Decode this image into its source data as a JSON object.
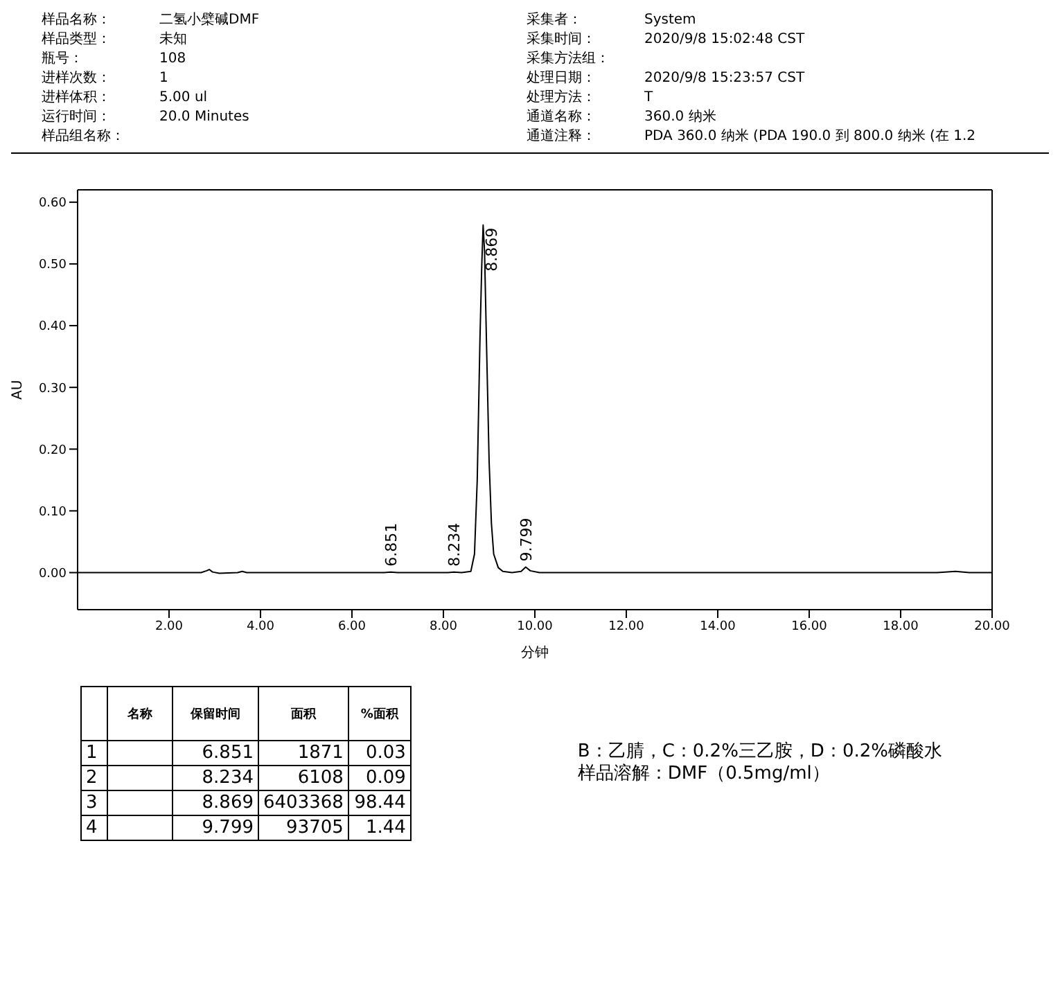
{
  "chart_data": {
    "type": "line",
    "xlabel": "分钟",
    "ylabel": "AU",
    "xlim": [
      0,
      20
    ],
    "ylim": [
      -0.06,
      0.62
    ],
    "xticks": [
      {
        "value": 2,
        "label": "2.00"
      },
      {
        "value": 4,
        "label": "4.00"
      },
      {
        "value": 6,
        "label": "6.00"
      },
      {
        "value": 8,
        "label": "8.00"
      },
      {
        "value": 10,
        "label": "10.00"
      },
      {
        "value": 12,
        "label": "12.00"
      },
      {
        "value": 14,
        "label": "14.00"
      },
      {
        "value": 16,
        "label": "16.00"
      },
      {
        "value": 18,
        "label": "18.00"
      },
      {
        "value": 20,
        "label": "20.00"
      }
    ],
    "yticks": [
      {
        "value": 0,
        "label": "0.00"
      },
      {
        "value": 0.1,
        "label": "0.10"
      },
      {
        "value": 0.2,
        "label": "0.20"
      },
      {
        "value": 0.3,
        "label": "0.30"
      },
      {
        "value": 0.4,
        "label": "0.40"
      },
      {
        "value": 0.5,
        "label": "0.50"
      },
      {
        "value": 0.6,
        "label": "0.60"
      }
    ],
    "marker": "none",
    "line_style": "solid",
    "x": [
      0,
      2.7,
      2.82,
      2.88,
      2.95,
      3.1,
      3.5,
      3.6,
      3.7,
      4.2,
      6.7,
      6.85,
      7.0,
      8.1,
      8.23,
      8.4,
      8.6,
      8.68,
      8.74,
      8.8,
      8.84,
      8.869,
      8.9,
      8.94,
      9.0,
      9.05,
      9.1,
      9.2,
      9.3,
      9.5,
      9.7,
      9.8,
      9.9,
      10.1,
      12,
      16,
      18.8,
      19.2,
      19.5,
      20
    ],
    "series": [
      {
        "color": "#000000",
        "values": [
          0,
          0,
          0.003,
          0.005,
          0.001,
          -0.001,
          0,
          0.002,
          0,
          0,
          0,
          0.001,
          0,
          0,
          0.001,
          0,
          0.002,
          0.03,
          0.15,
          0.38,
          0.5,
          0.563,
          0.52,
          0.38,
          0.18,
          0.08,
          0.03,
          0.008,
          0.002,
          0,
          0.002,
          0.009,
          0.003,
          0,
          0,
          0,
          0,
          0.002,
          0,
          0
        ]
      }
    ],
    "annotations": [
      "样品名称：",
      "样品类型：",
      "瓶号：",
      "进样次数：",
      "进样体积：",
      "运行时间：",
      "样品组名称：",
      "二氢小檗碱DMF",
      "未知",
      "108",
      "1",
      "5.00 ul",
      "20.0 Minutes",
      "采集者：",
      "采集时间：",
      "采集方法组：",
      "处理日期：",
      "处理方法：",
      "通道名称：",
      "通道注释：",
      "System",
      "2020/9/8 15:02:48 CST",
      "2020/9/8 15:23:57 CST",
      "T",
      "360.0 纳米",
      "PDA 360.0 纳米 (PDA 190.0 到 800.0 纳米 (在 1.2",
      "名称",
      "保留时间",
      "面积",
      "%面积",
      "1",
      "6.851",
      "1871",
      "0.03",
      "2",
      "8.234",
      "6108",
      "0.09",
      "3",
      "8.869",
      "6403368",
      "98.44",
      "4",
      "9.799",
      "93705",
      "1.44",
      "B：乙腈，C：0.2%三乙胺，D：0.2%磷酸水",
      "样品溶解：DMF（0.5mg/ml）",
      {
        "text": "6.851",
        "x": 6.851,
        "y": 0.001
      },
      {
        "text": "8.234",
        "x": 8.234,
        "y": 0.001
      },
      {
        "text": "8.869",
        "x": 8.869,
        "y": 0.563
      },
      {
        "text": "9.799",
        "x": 9.799,
        "y": 0.009
      }
    ]
  }
}
